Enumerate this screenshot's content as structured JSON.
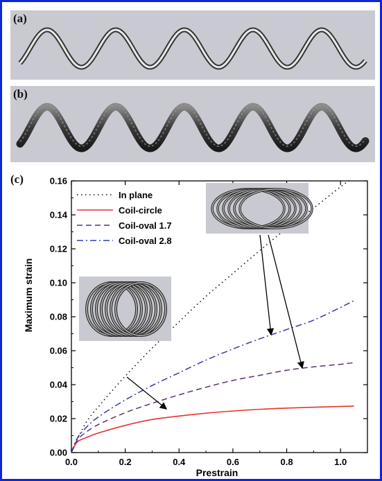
{
  "panels": {
    "a_label": "(a)",
    "b_label": "(b)",
    "c_label": "(c)"
  },
  "colors": {
    "frame_border": "#0a29d4",
    "panel_bg": "#c9cad1",
    "in_plane": "#111111",
    "coil_circle": "#e8322c",
    "coil_oval_1_7": "#5a2d78",
    "coil_oval_2_8": "#3438a8"
  },
  "chart_data": {
    "type": "line",
    "title": "",
    "xlabel": "Prestrain",
    "ylabel": "Maximum strain",
    "xlim": [
      0.0,
      1.1
    ],
    "ylim": [
      0.0,
      0.16
    ],
    "x_ticks": [
      "0.0",
      "0.2",
      "0.4",
      "0.6",
      "0.8",
      "1.0"
    ],
    "y_ticks": [
      "0.00",
      "0.02",
      "0.04",
      "0.06",
      "0.08",
      "0.10",
      "0.12",
      "0.14",
      "0.16"
    ],
    "legend_position": "top-left",
    "grid": false,
    "series": [
      {
        "name": "In plane",
        "style": "dotted",
        "x": [
          0,
          0.05,
          0.1,
          0.2,
          0.3,
          0.4,
          0.5,
          0.6,
          0.7,
          0.8,
          0.9,
          1.0,
          1.04
        ],
        "y": [
          0,
          0.0165,
          0.027,
          0.045,
          0.0615,
          0.077,
          0.092,
          0.1055,
          0.119,
          0.132,
          0.144,
          0.1565,
          0.161
        ]
      },
      {
        "name": "Coil-circle",
        "style": "solid",
        "x": [
          0,
          0.02,
          0.05,
          0.1,
          0.2,
          0.3,
          0.4,
          0.5,
          0.6,
          0.7,
          0.8,
          0.9,
          1.0,
          1.05
        ],
        "y": [
          0,
          0.006,
          0.0085,
          0.0115,
          0.016,
          0.0195,
          0.0215,
          0.0232,
          0.0245,
          0.0255,
          0.0262,
          0.0267,
          0.0272,
          0.0274
        ]
      },
      {
        "name": "Coil-oval 1.7",
        "style": "dashed",
        "x": [
          0,
          0.02,
          0.05,
          0.1,
          0.2,
          0.3,
          0.4,
          0.5,
          0.6,
          0.7,
          0.8,
          0.9,
          1.0,
          1.05
        ],
        "y": [
          0,
          0.007,
          0.0115,
          0.0165,
          0.0235,
          0.029,
          0.034,
          0.0385,
          0.0425,
          0.0455,
          0.0485,
          0.0505,
          0.052,
          0.053
        ]
      },
      {
        "name": "Coil-oval 2.8",
        "style": "dashdot",
        "x": [
          0,
          0.02,
          0.05,
          0.1,
          0.2,
          0.3,
          0.4,
          0.5,
          0.6,
          0.7,
          0.8,
          0.9,
          1.0,
          1.05
        ],
        "y": [
          0,
          0.008,
          0.014,
          0.021,
          0.031,
          0.0395,
          0.047,
          0.0545,
          0.061,
          0.067,
          0.0725,
          0.078,
          0.0855,
          0.0895
        ]
      }
    ]
  }
}
